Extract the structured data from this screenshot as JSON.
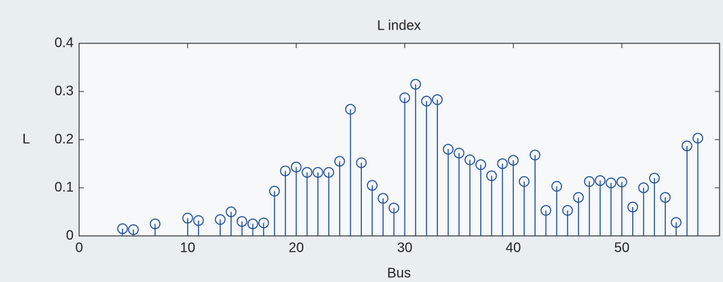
{
  "chart_data": {
    "type": "stem",
    "title": "L index",
    "xlabel": "Bus",
    "ylabel": "L",
    "x": [
      4,
      5,
      7,
      10,
      11,
      13,
      14,
      15,
      16,
      17,
      18,
      19,
      20,
      21,
      22,
      23,
      24,
      25,
      26,
      27,
      28,
      29,
      30,
      31,
      32,
      33,
      34,
      35,
      36,
      37,
      38,
      39,
      40,
      41,
      42,
      43,
      44,
      45,
      46,
      47,
      48,
      49,
      50,
      51,
      52,
      53,
      54,
      55,
      56,
      57
    ],
    "values": [
      0.015,
      0.013,
      0.025,
      0.037,
      0.032,
      0.034,
      0.05,
      0.03,
      0.025,
      0.027,
      0.093,
      0.135,
      0.143,
      0.132,
      0.132,
      0.132,
      0.155,
      0.263,
      0.152,
      0.105,
      0.078,
      0.058,
      0.287,
      0.315,
      0.28,
      0.283,
      0.18,
      0.172,
      0.158,
      0.148,
      0.125,
      0.15,
      0.157,
      0.113,
      0.168,
      0.053,
      0.103,
      0.053,
      0.08,
      0.113,
      0.115,
      0.11,
      0.112,
      0.06,
      0.1,
      0.12,
      0.08,
      0.028,
      0.187,
      0.203
    ],
    "color": "#1f4e9a",
    "xlim": [
      0,
      59
    ],
    "xticks": [
      0,
      10,
      20,
      30,
      40,
      50
    ],
    "ylim": [
      0,
      0.4
    ],
    "yticks": [
      0,
      0.1,
      0.2,
      0.3,
      0.4
    ]
  }
}
